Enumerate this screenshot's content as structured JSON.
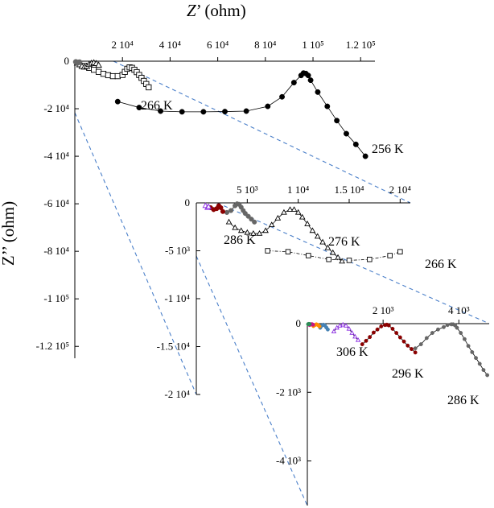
{
  "chart_data": [
    {
      "panel": "main",
      "type": "scatter",
      "xlabel_italic": "Z",
      "xlabel_rest": "’ (ohm)",
      "ylabel": "Z’’ (ohm)",
      "xlim": [
        0,
        126000
      ],
      "ylim": [
        -125000,
        0
      ],
      "x_ticks": [
        {
          "value": 20000,
          "label": "2 10⁴"
        },
        {
          "value": 40000,
          "label": "4 10⁴"
        },
        {
          "value": 60000,
          "label": "6 10⁴"
        },
        {
          "value": 80000,
          "label": "8 10⁴"
        },
        {
          "value": 100000,
          "label": "1 10⁵"
        },
        {
          "value": 120000,
          "label": "1.2 10⁵"
        }
      ],
      "y_ticks": [
        {
          "value": 0,
          "label": "0"
        },
        {
          "value": -20000,
          "label": "-2 10⁴"
        },
        {
          "value": -40000,
          "label": "-4 10⁴"
        },
        {
          "value": -60000,
          "label": "-6 10⁴"
        },
        {
          "value": -80000,
          "label": "-8 10⁴"
        },
        {
          "value": -100000,
          "label": "-1 10⁵"
        },
        {
          "value": -120000,
          "label": "-1.2 10⁵"
        }
      ],
      "series": [
        {
          "name": "256 K",
          "marker": "filled-circle",
          "color": "#000000",
          "x": [
            18000,
            27000,
            36000,
            45000,
            54000,
            63000,
            72000,
            81000,
            87000,
            92000,
            95000,
            96000,
            97000,
            98000,
            99000,
            102000,
            106000,
            110000,
            114000,
            118000,
            122000
          ],
          "y": [
            -17000,
            -19500,
            -21000,
            -21300,
            -21300,
            -21200,
            -21000,
            -19000,
            -15000,
            -9000,
            -6000,
            -5000,
            -5200,
            -6000,
            -8000,
            -13000,
            -19000,
            -25000,
            -30500,
            -35000,
            -40000
          ]
        },
        {
          "name": "266 K",
          "marker": "open-square",
          "color": "#000000",
          "x": [
            4000,
            6000,
            8000,
            10000,
            12000,
            14000,
            16000,
            18000,
            20000,
            21000,
            22000,
            23000,
            24000,
            25000,
            26000,
            27000,
            28000,
            29000,
            30000,
            31000
          ],
          "y": [
            -2000,
            -2800,
            -3600,
            -4500,
            -5300,
            -5900,
            -6300,
            -6300,
            -5800,
            -4500,
            -3200,
            -2600,
            -2800,
            -3600,
            -4600,
            -5800,
            -7000,
            -8300,
            -9600,
            -11000
          ]
        },
        {
          "name": "276 K",
          "marker": "open-triangle",
          "color": "#000000",
          "x": [
            1000,
            2000,
            3000,
            4000,
            5000,
            6000,
            7000,
            8000,
            9000,
            10000
          ],
          "y": [
            -800,
            -1500,
            -2200,
            -2500,
            -2200,
            -1400,
            -900,
            -700,
            -1000,
            -1700
          ]
        },
        {
          "name": "286 K",
          "marker": "filled-circle",
          "color": "#666666",
          "x": [
            400,
            800,
            1200,
            1600,
            2000
          ],
          "y": [
            -300,
            -600,
            -700,
            -500,
            -400
          ]
        }
      ]
    },
    {
      "panel": "inset1",
      "type": "scatter",
      "xlim": [
        0,
        21000
      ],
      "ylim": [
        -20000,
        0
      ],
      "x_ticks": [
        {
          "value": 5000,
          "label": "5 10³"
        },
        {
          "value": 10000,
          "label": "1 10⁴"
        },
        {
          "value": 15000,
          "label": "1.5 10⁴"
        },
        {
          "value": 20000,
          "label": "2 10⁴"
        }
      ],
      "y_ticks": [
        {
          "value": 0,
          "label": "0"
        },
        {
          "value": -5000,
          "label": "-5 10³"
        },
        {
          "value": -10000,
          "label": "-1 10⁴"
        },
        {
          "value": -15000,
          "label": "-1.5 10⁴"
        },
        {
          "value": -20000,
          "label": "-2 10⁴"
        }
      ],
      "series": [
        {
          "name": "266 K",
          "marker": "open-square",
          "color": "#000000",
          "x": [
            7000,
            9000,
            11000,
            13000,
            15000,
            17000,
            19000,
            20000
          ],
          "y": [
            -5000,
            -5100,
            -5500,
            -5900,
            -6000,
            -5900,
            -5500,
            -5100
          ]
        },
        {
          "name": "276 K",
          "marker": "open-triangle",
          "color": "#000000",
          "x": [
            3200,
            3800,
            4400,
            5000,
            5600,
            6200,
            6800,
            7400,
            8000,
            8600,
            9200,
            9600,
            10000,
            10400,
            10900,
            11400,
            11900,
            12400,
            12900,
            13400,
            13900,
            14300
          ],
          "y": [
            -2000,
            -2600,
            -2900,
            -3100,
            -3200,
            -3200,
            -2900,
            -2300,
            -1600,
            -1000,
            -700,
            -700,
            -1000,
            -1500,
            -2200,
            -2900,
            -3500,
            -4100,
            -4700,
            -5200,
            -5700,
            -6100
          ]
        },
        {
          "name": "286 K",
          "marker": "filled-circle",
          "color": "#666666",
          "x": [
            3000,
            3400,
            3800,
            4000,
            4200,
            4400,
            4600,
            4800,
            5100,
            5400,
            5700
          ],
          "y": [
            -1000,
            -800,
            -300,
            -100,
            -150,
            -450,
            -800,
            -1100,
            -1400,
            -1700,
            -2000
          ]
        },
        {
          "name": "296 K",
          "marker": "filled-circle",
          "color": "#8b0000",
          "x": [
            1400,
            1700,
            2000,
            2200,
            2400,
            2600
          ],
          "y": [
            -500,
            -700,
            -600,
            -300,
            -500,
            -900
          ]
        },
        {
          "name": "306 K",
          "marker": "open-triangle",
          "color": "#8a2be2",
          "x": [
            900,
            1100,
            1200
          ],
          "y": [
            -300,
            -500,
            -400
          ]
        }
      ]
    },
    {
      "panel": "inset2",
      "type": "scatter",
      "xlim": [
        0,
        4800
      ],
      "ylim": [
        -5300,
        0
      ],
      "x_ticks": [
        {
          "value": 2000,
          "label": "2 10³"
        },
        {
          "value": 4000,
          "label": "4 10³"
        }
      ],
      "y_ticks": [
        {
          "value": 0,
          "label": "0"
        },
        {
          "value": -2000,
          "label": "-2 10³"
        },
        {
          "value": -4000,
          "label": "-4 10³"
        }
      ],
      "series": [
        {
          "name": "286 K",
          "marker": "filled-circle",
          "color": "#666666",
          "x": [
            2850,
            3000,
            3150,
            3300,
            3450,
            3600,
            3700,
            3800,
            3850,
            3900,
            3950,
            4050,
            4150,
            4250,
            4350,
            4450,
            4550,
            4650,
            4750
          ],
          "y": [
            -720,
            -600,
            -420,
            -270,
            -170,
            -100,
            -40,
            -20,
            -20,
            -50,
            -120,
            -270,
            -450,
            -650,
            -830,
            -1000,
            -1170,
            -1350,
            -1500
          ]
        },
        {
          "name": "296 K",
          "marker": "filled-circle",
          "color": "#8b0000",
          "x": [
            1450,
            1550,
            1650,
            1750,
            1850,
            1950,
            2050,
            2100,
            2150,
            2250,
            2350,
            2450,
            2550,
            2650,
            2750,
            2850
          ],
          "y": [
            -600,
            -500,
            -390,
            -260,
            -170,
            -80,
            -40,
            -30,
            -50,
            -150,
            -270,
            -400,
            -520,
            -640,
            -740,
            -840
          ]
        },
        {
          "name": "306 K",
          "marker": "open-triangle",
          "color": "#8a2be2",
          "x": [
            700,
            780,
            860,
            940,
            1020,
            1100,
            1180,
            1260,
            1340
          ],
          "y": [
            -230,
            -120,
            -60,
            -30,
            -60,
            -150,
            -270,
            -380,
            -480
          ]
        },
        {
          "name": "",
          "marker": "filled-circle",
          "color": "#4682b4",
          "x": [
            340,
            380,
            420,
            460,
            500,
            540
          ],
          "y": [
            -120,
            -60,
            -30,
            -50,
            -110,
            -170
          ]
        },
        {
          "name": "",
          "marker": "filled-circle",
          "color": "#ff8c00",
          "x": [
            160,
            200,
            240,
            280,
            320
          ],
          "y": [
            -70,
            -40,
            -20,
            -40,
            -80
          ]
        },
        {
          "name": "",
          "marker": "filled-circle",
          "color": "#c71585",
          "x": [
            60,
            90,
            120,
            150
          ],
          "y": [
            -40,
            -20,
            -15,
            -30
          ]
        },
        {
          "name": "",
          "marker": "filled-circle",
          "color": "#2e8b57",
          "x": [
            20,
            40,
            60
          ],
          "y": [
            -15,
            -8,
            -12
          ]
        }
      ]
    }
  ]
}
